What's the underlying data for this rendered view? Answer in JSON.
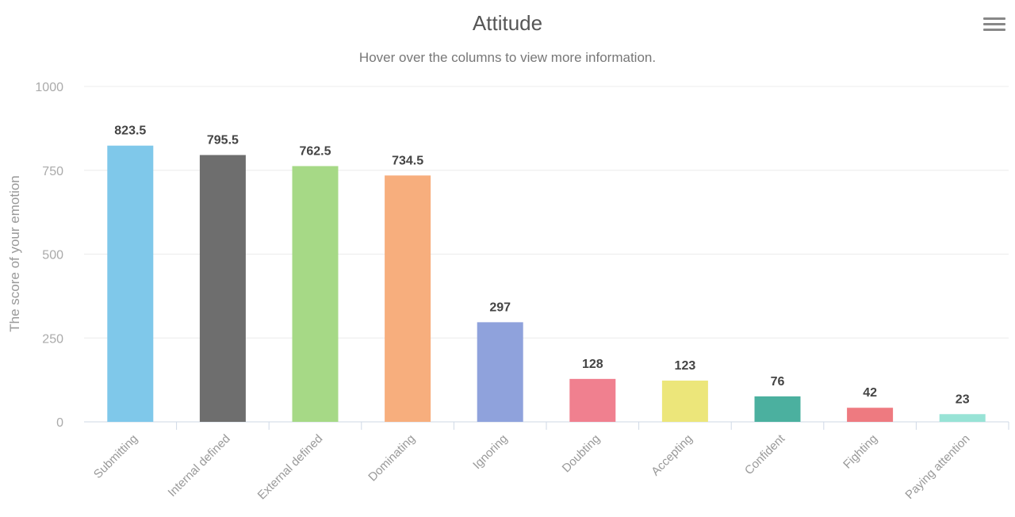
{
  "chart_data": {
    "type": "bar",
    "title": "Attitude",
    "subtitle": "Hover over the columns to view more information.",
    "xlabel": "",
    "ylabel": "The score of your emotion",
    "ylim": [
      0,
      1000
    ],
    "yticks": [
      "0",
      "250",
      "500",
      "750",
      "1000"
    ],
    "grid": true,
    "categories": [
      "Submitting",
      "Internal defined",
      "External defined",
      "Dominating",
      "Ignoring",
      "Doubting",
      "Accepting",
      "Confident",
      "Fighting",
      "Paying attention"
    ],
    "values": [
      823.5,
      795.5,
      762.5,
      734.5,
      297,
      128,
      123,
      76,
      42,
      23
    ],
    "data_labels": [
      "823.5",
      "795.5",
      "762.5",
      "734.5",
      "297",
      "128",
      "123",
      "76",
      "42",
      "23"
    ],
    "colors": [
      "#7fc8ea",
      "#6e6e6e",
      "#a6d986",
      "#f7ae7d",
      "#8fa2dc",
      "#f0808f",
      "#ece67a",
      "#4bb09f",
      "#ee7a80",
      "#98e3d6"
    ]
  },
  "menu": {
    "icon": "hamburger-menu-icon"
  }
}
